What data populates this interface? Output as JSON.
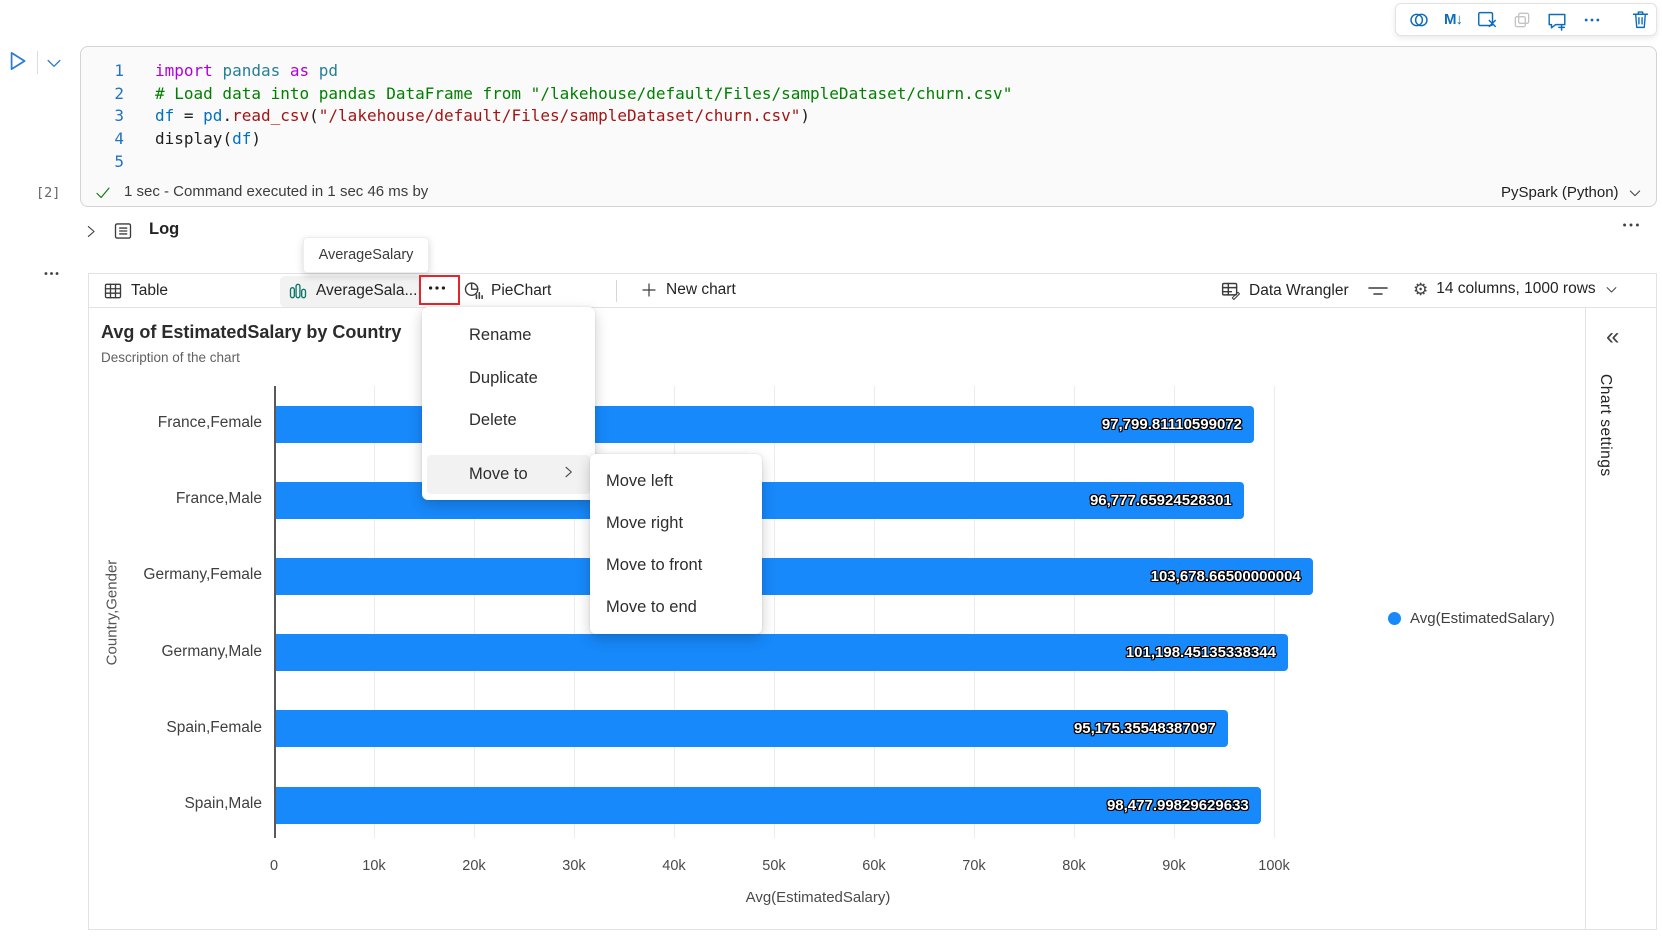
{
  "cell_toolbar": {
    "icons": [
      "copilot",
      "convert-to-markdown",
      "clear-outputs",
      "copy-cell",
      "add-comment",
      "more-options",
      "delete-cell"
    ]
  },
  "code": {
    "lines": [
      {
        "n": "1",
        "tokens": [
          [
            "kw",
            "import"
          ],
          [
            "pln",
            " "
          ],
          [
            "mod",
            "pandas"
          ],
          [
            "pln",
            " "
          ],
          [
            "kw",
            "as"
          ],
          [
            "pln",
            " "
          ],
          [
            "mod",
            "pd"
          ]
        ]
      },
      {
        "n": "2",
        "tokens": [
          [
            "com",
            "# Load data into pandas DataFrame from \"/lakehouse/default/Files/sampleDataset/churn.csv\""
          ]
        ]
      },
      {
        "n": "3",
        "tokens": [
          [
            "var",
            "df"
          ],
          [
            "op",
            " = "
          ],
          [
            "var",
            "pd"
          ],
          [
            "pln",
            "."
          ],
          [
            "fn",
            "read_csv"
          ],
          [
            "pln",
            "("
          ],
          [
            "str",
            "\"/lakehouse/default/Files/sampleDataset/churn.csv\""
          ],
          [
            "pln",
            ")"
          ]
        ]
      },
      {
        "n": "4",
        "tokens": [
          [
            "pln",
            "display"
          ],
          [
            "pln",
            "("
          ],
          [
            "var",
            "df"
          ],
          [
            "pln",
            ")"
          ]
        ]
      },
      {
        "n": "5",
        "tokens": []
      }
    ]
  },
  "status": {
    "execution_count": "[2]",
    "message": "1 sec - Command executed in 1 sec 46 ms by",
    "kernel": "PySpark (Python)"
  },
  "log": {
    "label": "Log"
  },
  "tooltip": {
    "text": "AverageSalary"
  },
  "tabs": {
    "table": "Table",
    "chart_tab": "AverageSala...",
    "pie": "PieChart",
    "new_chart": "New chart",
    "data_wrangler": "Data Wrangler",
    "columns_info": "14 columns, 1000 rows"
  },
  "context_menu": {
    "items": [
      "Rename",
      "Duplicate",
      "Delete"
    ],
    "move_to": "Move to",
    "submenu": [
      "Move left",
      "Move right",
      "Move to front",
      "Move to end"
    ]
  },
  "chart_header": {
    "title": "Avg of EstimatedSalary by Country",
    "description": "Description of the chart"
  },
  "sidebar": {
    "label": "Chart settings",
    "collapse_glyph": "«"
  },
  "chart_data": {
    "type": "bar",
    "orientation": "horizontal",
    "title": "Avg of EstimatedSalary by Country",
    "categories": [
      "France,Female",
      "France,Male",
      "Germany,Female",
      "Germany,Male",
      "Spain,Female",
      "Spain,Male"
    ],
    "values": [
      97799.81110599072,
      96777.65924528301,
      103678.66500000004,
      101198.45135338344,
      95175.35548387097,
      98477.99829629633
    ],
    "value_labels": [
      "97,799.81110599072",
      "96,777.65924528301",
      "103,678.66500000004",
      "101,198.45135338344",
      "95,175.35548387097",
      "98,477.99829629633"
    ],
    "xlabel": "Avg(EstimatedSalary)",
    "ylabel": "Country,Gender",
    "xlim": [
      0,
      110000
    ],
    "xtick_step": 10000,
    "xticks": [
      "0",
      "10k",
      "20k",
      "30k",
      "40k",
      "50k",
      "60k",
      "70k",
      "80k",
      "90k",
      "100k"
    ],
    "grid": true,
    "legend": [
      "Avg(EstimatedSalary)"
    ],
    "legend_position": "right",
    "bar_color": "#1789fb"
  },
  "colors": {
    "bar_blue": "#1789fb",
    "icon_blue": "#0f6cbd",
    "chart_tab_teal": "#0e7569",
    "annotation_red": "#e4252b",
    "success_green": "#107c10"
  }
}
